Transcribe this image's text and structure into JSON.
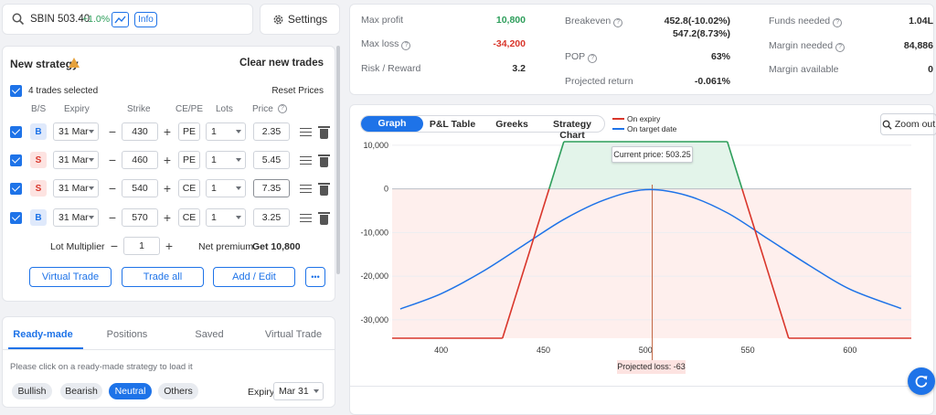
{
  "search": {
    "symbol": "SBIN",
    "price": "503.40",
    "change": "+1.0%",
    "info_label": "Info",
    "settings_label": "Settings"
  },
  "strategy": {
    "title": "New strategy",
    "clear_label": "Clear new trades",
    "trades_selected": "4 trades selected",
    "reset_label": "Reset Prices",
    "headers": {
      "bs": "B/S",
      "expiry": "Expiry",
      "strike": "Strike",
      "cepe": "CE/PE",
      "lots": "Lots",
      "price": "Price"
    },
    "legs": [
      {
        "bs": "B",
        "expiry": "31 Mar",
        "strike": "430",
        "type": "PE",
        "lots": "1",
        "price": "2.35"
      },
      {
        "bs": "S",
        "expiry": "31 Mar",
        "strike": "460",
        "type": "PE",
        "lots": "1",
        "price": "5.45"
      },
      {
        "bs": "S",
        "expiry": "31 Mar",
        "strike": "540",
        "type": "CE",
        "lots": "1",
        "price": "7.35"
      },
      {
        "bs": "B",
        "expiry": "31 Mar",
        "strike": "570",
        "type": "CE",
        "lots": "1",
        "price": "3.25"
      }
    ],
    "lot_multiplier_label": "Lot Multiplier",
    "lot_multiplier": "1",
    "net_premium_label": "Net premium",
    "net_premium": "Get 10,800",
    "buttons": {
      "virtual": "Virtual Trade",
      "trade_all": "Trade all",
      "add_edit": "Add / Edit",
      "more": "•••"
    }
  },
  "readymade": {
    "tabs": [
      "Ready-made",
      "Positions",
      "Saved",
      "Virtual Trade"
    ],
    "hint": "Please click on a ready-made strategy to load it",
    "filters": [
      "Bullish",
      "Bearish",
      "Neutral",
      "Others"
    ],
    "expiry_label": "Expiry",
    "expiry_value": "Mar 31"
  },
  "metrics": {
    "max_profit_label": "Max profit",
    "max_profit": "10,800",
    "max_loss_label": "Max loss",
    "max_loss": "-34,200",
    "rr_label": "Risk / Reward",
    "rr": "3.2",
    "breakeven_label": "Breakeven",
    "breakeven_1": "452.8(-10.02%)",
    "breakeven_2": "547.2(8.73%)",
    "pop_label": "POP",
    "pop": "63%",
    "proj_return_label": "Projected return",
    "proj_return": "-0.061%",
    "funds_label": "Funds needed",
    "funds": "1.04L",
    "margin_label": "Margin needed",
    "margin": "84,886",
    "margin_avail_label": "Margin available",
    "margin_avail": "0"
  },
  "chart_tabs": [
    "Graph",
    "P&L Table",
    "Greeks",
    "Strategy Chart"
  ],
  "legend": {
    "expiry": "On expiry",
    "target": "On target date"
  },
  "zoom_label": "Zoom out",
  "current_price_label": "Current price: 503.25",
  "projected_loss_label": "Projected loss: -63",
  "colors": {
    "accent": "#1e73e8",
    "profit": "#2e9e5b",
    "loss": "#d9362b",
    "current": "#c0633f"
  },
  "chart_data": {
    "type": "line",
    "x_ticks": [
      400,
      450,
      500,
      550,
      600
    ],
    "y_ticks": [
      10000,
      0,
      -10000,
      -20000,
      -30000
    ],
    "y_tick_labels": [
      "10,000",
      "0",
      "-10,000",
      "-20,000",
      "-30,000"
    ],
    "xlim": [
      376,
      630
    ],
    "ylim": [
      -34200,
      10800
    ],
    "current_price": 503.25,
    "series": [
      {
        "name": "On expiry",
        "points": [
          [
            376,
            -34200
          ],
          [
            430,
            -34200
          ],
          [
            460,
            10800
          ],
          [
            540,
            10800
          ],
          [
            570,
            -34200
          ],
          [
            630,
            -34200
          ]
        ]
      },
      {
        "name": "On target date",
        "points": [
          [
            380,
            -27500
          ],
          [
            400,
            -24000
          ],
          [
            420,
            -19000
          ],
          [
            440,
            -13000
          ],
          [
            460,
            -7000
          ],
          [
            480,
            -2500
          ],
          [
            500,
            -200
          ],
          [
            520,
            -1500
          ],
          [
            540,
            -5500
          ],
          [
            560,
            -11500
          ],
          [
            580,
            -17500
          ],
          [
            600,
            -23000
          ],
          [
            625,
            -27400
          ]
        ]
      }
    ]
  }
}
